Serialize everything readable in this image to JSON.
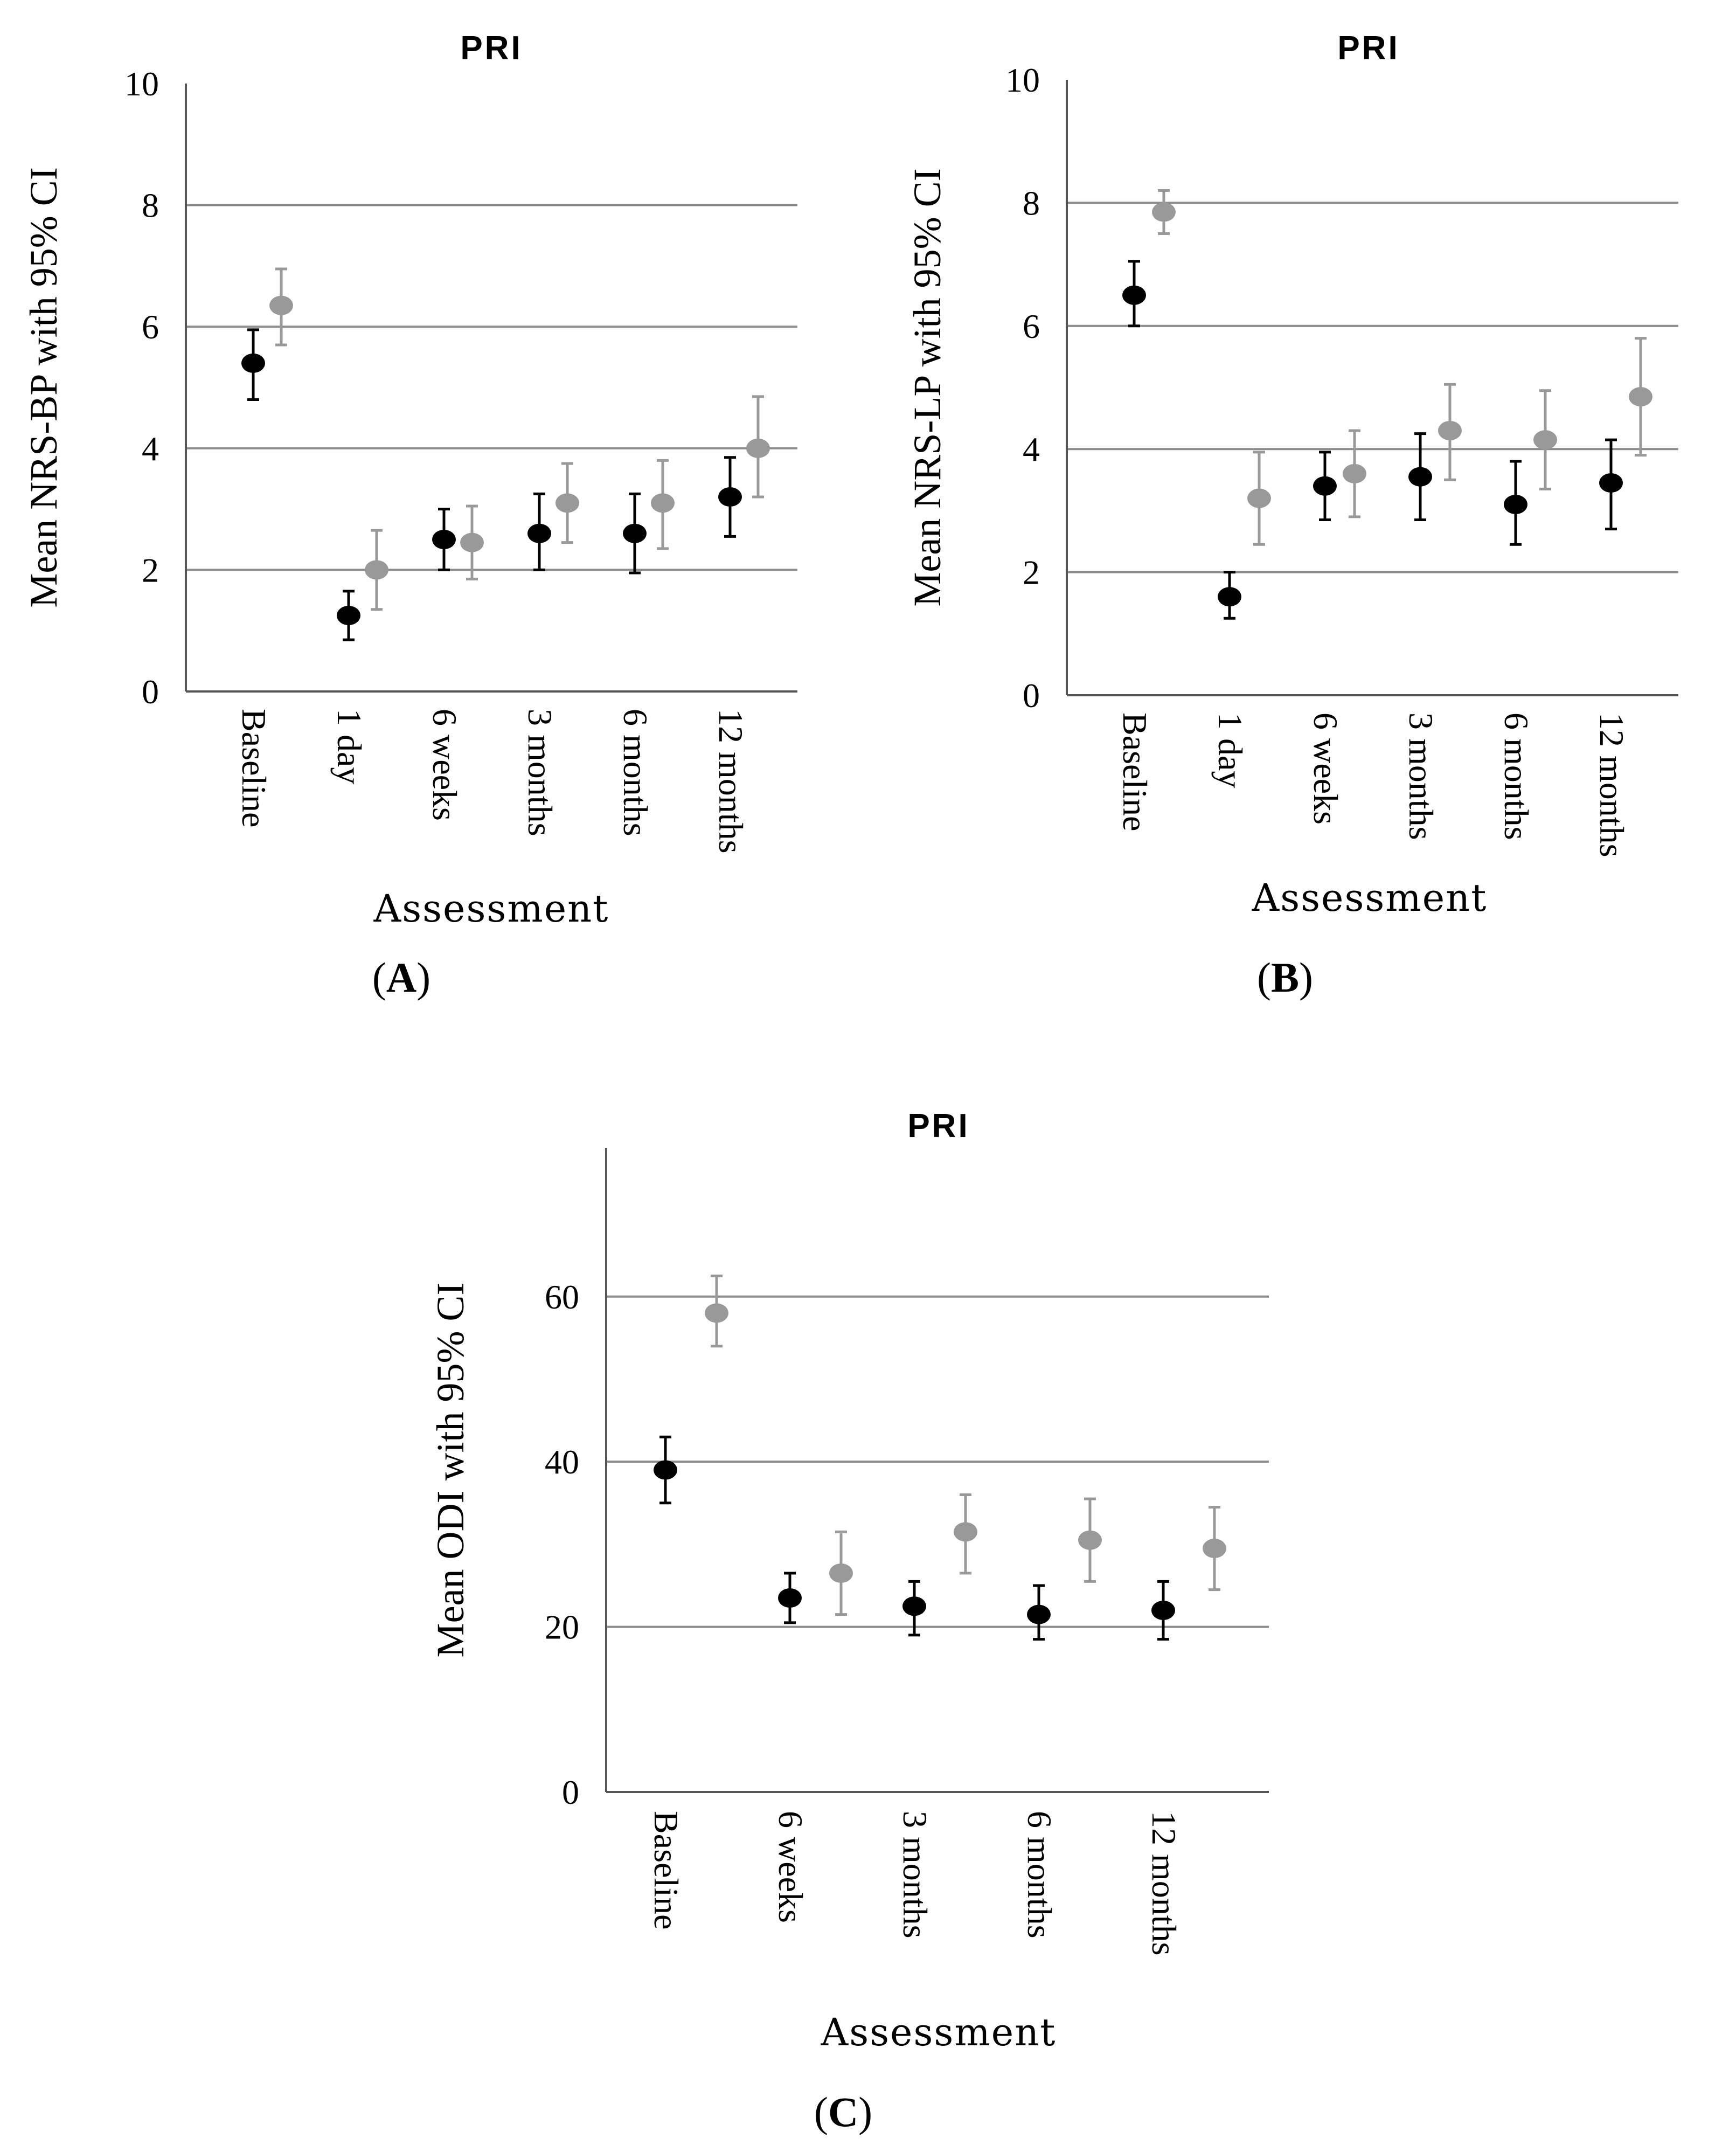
{
  "chart_data": [
    {
      "type": "scatter",
      "panel": "A",
      "title": "PRI",
      "ylabel": "Mean NRS-BP with 95% CI",
      "xlabel": "Assessment",
      "ylim": [
        0,
        10
      ],
      "yticks": [
        0,
        2,
        4,
        6,
        8,
        10
      ],
      "grid": true,
      "categories": [
        "Baseline",
        "1 day",
        "6 weeks",
        "3 months",
        "6 months",
        "12 months"
      ],
      "series": [
        {
          "name": "",
          "color": "#000000",
          "values": [
            5.4,
            1.25,
            2.5,
            2.6,
            2.6,
            3.2
          ],
          "ci_low": [
            4.8,
            0.85,
            2.0,
            2.0,
            1.95,
            2.55
          ],
          "ci_high": [
            5.95,
            1.65,
            3.0,
            3.25,
            3.25,
            3.85
          ]
        },
        {
          "name": "",
          "color": "#999999",
          "values": [
            6.35,
            2.0,
            2.45,
            3.1,
            3.1,
            4.0
          ],
          "ci_low": [
            5.7,
            1.35,
            1.85,
            2.45,
            2.35,
            3.2
          ],
          "ci_high": [
            6.95,
            2.65,
            3.05,
            3.75,
            3.8,
            4.85
          ]
        }
      ]
    },
    {
      "type": "scatter",
      "panel": "B",
      "title": "PRI",
      "ylabel": "Mean NRS-LP with 95% CI",
      "xlabel": "Assessment",
      "ylim": [
        0,
        10
      ],
      "yticks": [
        0,
        2,
        4,
        6,
        8,
        10
      ],
      "grid": true,
      "categories": [
        "Baseline",
        "1 day",
        "6 weeks",
        "3 months",
        "6 months",
        "12 months"
      ],
      "series": [
        {
          "name": "",
          "color": "#000000",
          "values": [
            6.5,
            1.6,
            3.4,
            3.55,
            3.1,
            3.45
          ],
          "ci_low": [
            6.0,
            1.25,
            2.85,
            2.85,
            2.45,
            2.7
          ],
          "ci_high": [
            7.05,
            2.0,
            3.95,
            4.25,
            3.8,
            4.15
          ]
        },
        {
          "name": "",
          "color": "#999999",
          "values": [
            7.85,
            3.2,
            3.6,
            4.3,
            4.15,
            4.85
          ],
          "ci_low": [
            7.5,
            2.45,
            2.9,
            3.5,
            3.35,
            3.9
          ],
          "ci_high": [
            8.2,
            3.95,
            4.3,
            5.05,
            4.95,
            5.8
          ]
        }
      ]
    },
    {
      "type": "scatter",
      "panel": "C",
      "title": "PRI",
      "ylabel": "Mean ODI with 95% CI",
      "xlabel": "Assessment",
      "ylim": [
        0,
        78
      ],
      "yticks": [
        0,
        20,
        40,
        60
      ],
      "grid": true,
      "categories": [
        "Baseline",
        "6 weeks",
        "3 months",
        "6 months",
        "12 months"
      ],
      "series": [
        {
          "name": "",
          "color": "#000000",
          "values": [
            39,
            23.5,
            22.5,
            21.5,
            22
          ],
          "ci_low": [
            35,
            20.5,
            19,
            18.5,
            18.5
          ],
          "ci_high": [
            43,
            26.5,
            25.5,
            25,
            25.5
          ]
        },
        {
          "name": "",
          "color": "#999999",
          "values": [
            58,
            26.5,
            31.5,
            30.5,
            29.5
          ],
          "ci_low": [
            54,
            21.5,
            26.5,
            25.5,
            24.5
          ],
          "ci_high": [
            62.5,
            31.5,
            36,
            35.5,
            34.5
          ]
        }
      ]
    }
  ]
}
